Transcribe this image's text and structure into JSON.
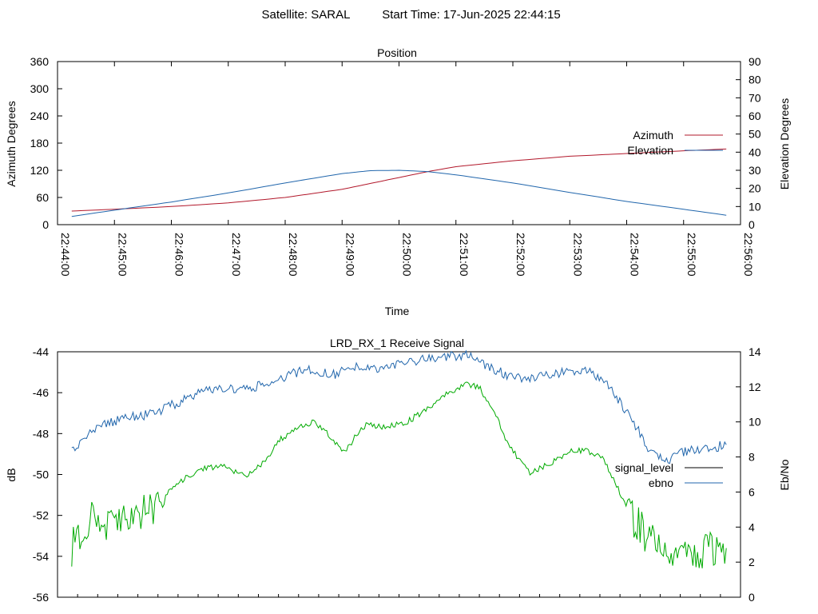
{
  "header": {
    "satellite": "Satellite: SARAL",
    "start_time": "Start Time: 17-Jun-2025 22:44:15"
  },
  "chart_data": [
    {
      "type": "line",
      "title": "Position",
      "xlabel": "Time",
      "ylabel": "Azimuth Degrees",
      "y2label": "Elevation Degrees",
      "x_ticks": [
        "22:44:00",
        "22:45:00",
        "22:46:00",
        "22:47:00",
        "22:48:00",
        "22:49:00",
        "22:50:00",
        "22:51:00",
        "22:52:00",
        "22:53:00",
        "22:54:00",
        "22:55:00",
        "22:56:00"
      ],
      "xlim_minutes": [
        0,
        12
      ],
      "ylim": [
        0,
        360
      ],
      "y_ticks": [
        0,
        60,
        120,
        180,
        240,
        300,
        360
      ],
      "y2lim": [
        0,
        90
      ],
      "y2_ticks": [
        0,
        10,
        20,
        30,
        40,
        50,
        60,
        70,
        80,
        90
      ],
      "legend_position": "right",
      "series": [
        {
          "name": "Azimuth",
          "axis": "y",
          "color": "#b2182b",
          "x": [
            0.25,
            1.0,
            2.0,
            3.0,
            4.0,
            5.0,
            5.5,
            6.0,
            6.5,
            7.0,
            8.0,
            9.0,
            10.0,
            11.0,
            11.75
          ],
          "y": [
            30,
            34,
            40,
            48,
            60,
            78,
            91,
            104,
            117,
            128,
            141,
            151,
            157,
            163,
            167
          ]
        },
        {
          "name": "Elevation",
          "axis": "y2",
          "color": "#2166ac",
          "x": [
            0.25,
            1.0,
            2.0,
            3.0,
            4.0,
            5.0,
            5.5,
            6.0,
            6.5,
            7.0,
            8.0,
            9.0,
            10.0,
            11.0,
            11.75
          ],
          "y": [
            4.5,
            8.0,
            12.5,
            17.5,
            23.0,
            28.2,
            29.8,
            30.0,
            29.3,
            27.5,
            23.0,
            17.8,
            12.8,
            8.5,
            5.2
          ]
        }
      ]
    },
    {
      "type": "line",
      "title": "LRD_RX_1 Receive Signal",
      "ylabel": "dB",
      "y2label": "Eb/No",
      "xlim_minutes": [
        0,
        12
      ],
      "ylim": [
        -56,
        -44
      ],
      "y_ticks": [
        -56,
        -54,
        -52,
        -50,
        -48,
        -46,
        -44
      ],
      "y2lim": [
        0,
        14
      ],
      "y2_ticks": [
        0,
        2,
        4,
        6,
        8,
        10,
        12,
        14
      ],
      "x_minor_ticks": 34,
      "legend_position": "right",
      "series": [
        {
          "name": "signal_level",
          "axis": "y",
          "legend_color": "#000000",
          "color": "#00aa00",
          "x": [
            0.25,
            0.45,
            0.6,
            0.8,
            1.0,
            1.3,
            1.6,
            1.9,
            2.2,
            2.5,
            2.9,
            3.3,
            3.6,
            3.9,
            4.2,
            4.5,
            4.7,
            4.85,
            5.05,
            5.25,
            5.45,
            5.7,
            6.1,
            6.5,
            6.8,
            7.15,
            7.4,
            7.65,
            7.95,
            8.3,
            8.7,
            9.0,
            9.3,
            9.6,
            9.85,
            10.1,
            10.4,
            10.7,
            11.0,
            11.3,
            11.75
          ],
          "y": [
            -53.6,
            -52.6,
            -52.2,
            -52.6,
            -52.4,
            -52.1,
            -51.8,
            -51.0,
            -50.3,
            -49.7,
            -49.6,
            -50.1,
            -49.5,
            -48.3,
            -47.8,
            -47.4,
            -47.8,
            -48.4,
            -48.9,
            -48.1,
            -47.5,
            -47.7,
            -47.5,
            -46.8,
            -46.1,
            -45.6,
            -45.7,
            -46.8,
            -48.7,
            -49.9,
            -49.4,
            -48.9,
            -48.8,
            -49.3,
            -50.7,
            -52.1,
            -53.2,
            -53.9,
            -54.0,
            -53.7,
            -53.6
          ]
        },
        {
          "name": "ebno",
          "axis": "y2",
          "color": "#2166ac",
          "x": [
            0.25,
            0.45,
            0.6,
            0.8,
            1.0,
            1.3,
            1.6,
            1.9,
            2.2,
            2.5,
            2.9,
            3.3,
            3.6,
            3.9,
            4.2,
            4.5,
            4.7,
            4.85,
            5.05,
            5.25,
            5.45,
            5.7,
            6.1,
            6.5,
            6.8,
            7.15,
            7.4,
            7.65,
            7.95,
            8.3,
            8.7,
            9.0,
            9.3,
            9.6,
            9.85,
            10.1,
            10.4,
            10.7,
            11.0,
            11.3,
            11.75
          ],
          "y": [
            8.4,
            8.8,
            9.4,
            9.8,
            10.0,
            10.3,
            10.4,
            10.8,
            11.2,
            11.7,
            11.9,
            11.8,
            12.1,
            12.5,
            12.8,
            13.0,
            12.8,
            12.7,
            12.9,
            13.2,
            13.0,
            13.1,
            13.4,
            13.6,
            13.7,
            13.8,
            13.5,
            13.0,
            12.6,
            12.4,
            12.7,
            12.9,
            12.9,
            12.4,
            11.3,
            10.1,
            8.4,
            7.8,
            8.3,
            8.4,
            8.7
          ]
        }
      ]
    }
  ]
}
